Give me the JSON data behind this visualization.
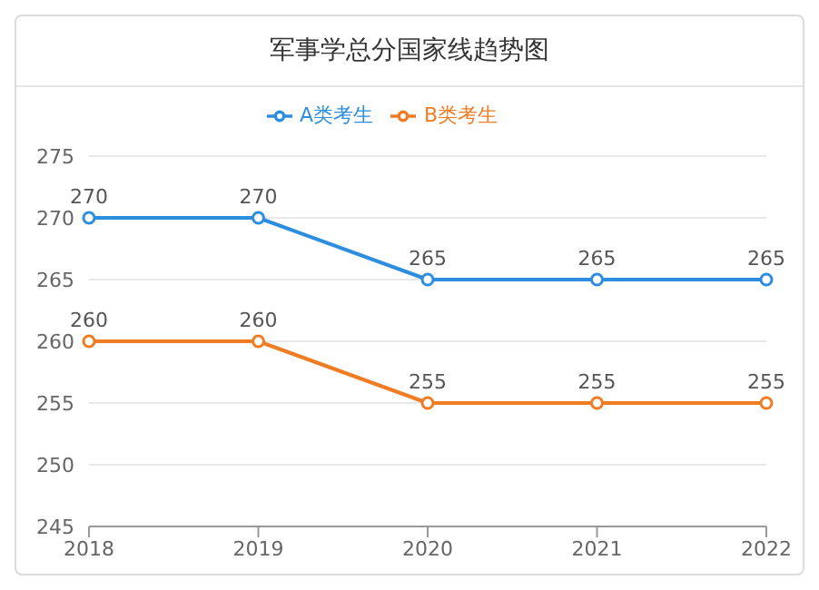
{
  "chart_data": {
    "type": "line",
    "title": "军事学总分国家线趋势图",
    "categories": [
      "2018",
      "2019",
      "2020",
      "2021",
      "2022"
    ],
    "series": [
      {
        "name": "A类考生",
        "color": "#2d8ee0",
        "values": [
          270,
          270,
          265,
          265,
          265
        ]
      },
      {
        "name": "B类考生",
        "color": "#f07c24",
        "values": [
          260,
          260,
          255,
          255,
          255
        ]
      }
    ],
    "ylim": [
      245,
      275
    ],
    "yticks": [
      245,
      250,
      255,
      260,
      265,
      270,
      275
    ],
    "grid": "y",
    "legend": "top",
    "marker": "circle",
    "data_labels": true
  }
}
